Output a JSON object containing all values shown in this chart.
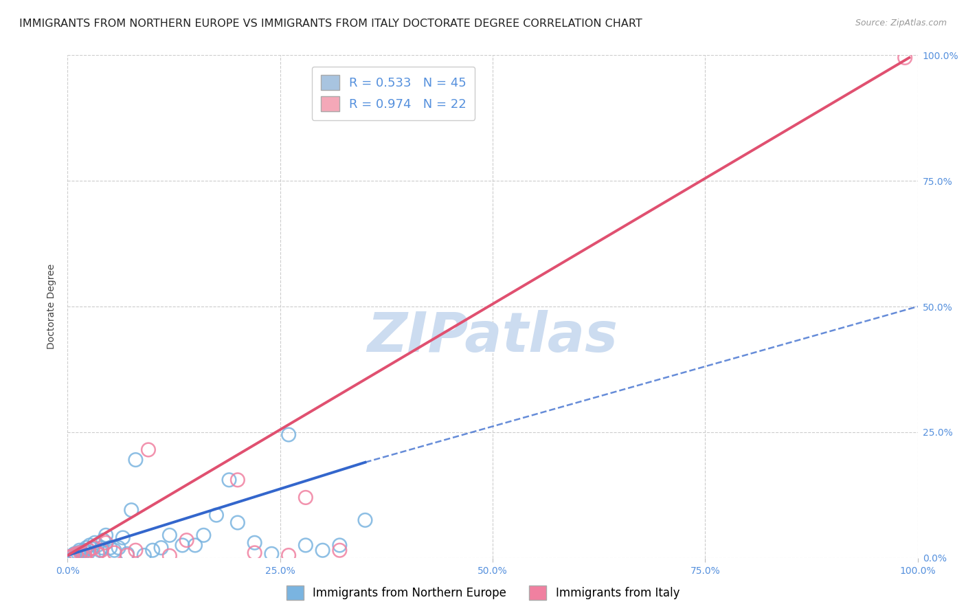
{
  "title": "IMMIGRANTS FROM NORTHERN EUROPE VS IMMIGRANTS FROM ITALY DOCTORATE DEGREE CORRELATION CHART",
  "source": "Source: ZipAtlas.com",
  "ylabel": "Doctorate Degree",
  "xlim": [
    0,
    100
  ],
  "ylim": [
    0,
    100
  ],
  "legend1_label": "R = 0.533   N = 45",
  "legend2_label": "R = 0.974   N = 22",
  "legend1_color": "#a8c4e0",
  "legend2_color": "#f4a8b8",
  "series1_name": "Immigrants from Northern Europe",
  "series2_name": "Immigrants from Italy",
  "series1_color": "#7ab4e0",
  "series2_color": "#f080a0",
  "regression1_color": "#3366cc",
  "regression2_color": "#e05070",
  "watermark": "ZIPatlas",
  "watermark_color": "#ccdcf0",
  "title_fontsize": 11.5,
  "axis_label_fontsize": 10,
  "tick_fontsize": 10,
  "legend_fontsize": 13,
  "background_color": "#ffffff",
  "grid_color": "#cccccc",
  "right_tick_color": "#5590dd",
  "series1_x": [
    0.3,
    0.5,
    0.7,
    0.8,
    1.0,
    1.2,
    1.4,
    1.6,
    1.8,
    2.0,
    2.2,
    2.4,
    2.6,
    2.8,
    3.0,
    3.2,
    3.5,
    3.8,
    4.0,
    4.2,
    4.5,
    5.0,
    5.5,
    6.0,
    6.5,
    7.0,
    7.5,
    8.0,
    9.0,
    10.0,
    11.0,
    12.0,
    13.5,
    15.0,
    16.0,
    17.5,
    19.0,
    20.0,
    22.0,
    24.0,
    26.0,
    28.0,
    30.0,
    32.0,
    35.0
  ],
  "series1_y": [
    0.2,
    0.4,
    0.6,
    0.8,
    0.5,
    1.0,
    1.5,
    1.2,
    0.8,
    1.5,
    2.0,
    1.0,
    2.5,
    1.8,
    0.5,
    3.0,
    2.5,
    1.5,
    2.0,
    3.5,
    4.5,
    2.0,
    1.5,
    2.0,
    4.0,
    0.8,
    9.5,
    19.5,
    0.5,
    1.5,
    2.0,
    4.5,
    2.5,
    2.5,
    4.5,
    8.5,
    15.5,
    7.0,
    3.0,
    0.8,
    24.5,
    2.5,
    1.5,
    2.5,
    7.5
  ],
  "series2_x": [
    0.3,
    0.6,
    1.0,
    1.5,
    2.0,
    2.5,
    3.0,
    3.5,
    4.0,
    4.5,
    5.5,
    7.0,
    8.0,
    9.5,
    12.0,
    14.0,
    20.0,
    22.0,
    26.0,
    28.0,
    32.0,
    98.5
  ],
  "series2_y": [
    0.2,
    0.4,
    0.8,
    1.0,
    0.5,
    1.5,
    2.0,
    0.8,
    1.5,
    3.0,
    1.0,
    0.5,
    1.5,
    21.5,
    0.4,
    3.5,
    15.5,
    1.0,
    0.5,
    12.0,
    1.5,
    99.5
  ],
  "reg1_x0": 0,
  "reg1_y0": 0.5,
  "reg1_x1": 35,
  "reg1_y1": 19.0,
  "reg1_dash_x0": 35,
  "reg1_dash_y0": 19.0,
  "reg1_dash_x1": 100,
  "reg1_dash_y1": 50.0,
  "reg2_x0": 0,
  "reg2_y0": 0.5,
  "reg2_x1": 99,
  "reg2_y1": 99.5
}
